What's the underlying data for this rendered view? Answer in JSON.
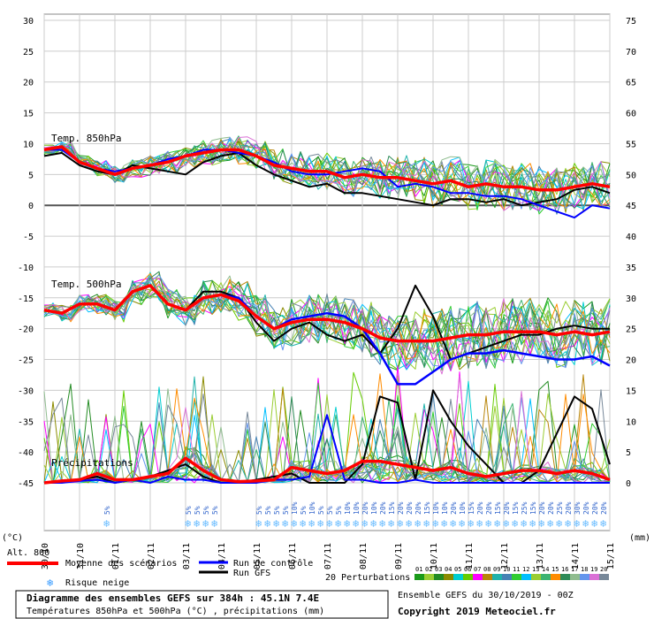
{
  "chart_data": {
    "type": "line",
    "left_axis": {
      "label": "(°C)",
      "ticks": [
        30,
        25,
        20,
        15,
        10,
        5,
        0,
        -5,
        -10,
        -15,
        -20,
        -25,
        -30,
        -35,
        -40,
        -45
      ],
      "ylim": [
        -45,
        30
      ]
    },
    "right_axis": {
      "label": "(mm)",
      "ticks": [
        75,
        70,
        65,
        60,
        55,
        50,
        45,
        40,
        35,
        30,
        25,
        20,
        15,
        10,
        5,
        0
      ],
      "ylim": [
        0,
        75
      ]
    },
    "x_ticks": [
      "30/10",
      "31/10",
      "01/11",
      "02/11",
      "03/11",
      "04/11",
      "05/11",
      "06/11",
      "07/11",
      "08/11",
      "09/11",
      "10/11",
      "11/11",
      "12/11",
      "13/11",
      "14/11",
      "15/11"
    ],
    "alt_label": "Alt. 800",
    "panel_labels": {
      "t850": "Temp. 850hPa",
      "t500": "Temp. 500hPa",
      "precip": "Précipitations"
    },
    "legend": {
      "mean": "Moyenne des scénarios",
      "control": "Run de contrôle",
      "gfs": "Run GFS",
      "snow": "Risque neige",
      "perturbations": "20 Perturbations",
      "pert_numbers": [
        "01",
        "02",
        "03",
        "04",
        "05",
        "06",
        "07",
        "08",
        "09",
        "10",
        "11",
        "12",
        "13",
        "14",
        "15",
        "16",
        "17",
        "18",
        "19",
        "20"
      ]
    },
    "pert_colors": [
      "#1a9a1a",
      "#9acd32",
      "#228b22",
      "#8b8b00",
      "#00ced1",
      "#66cc00",
      "#ff00ff",
      "#b8860b",
      "#20b2aa",
      "#4682b4",
      "#32cd32",
      "#00bfff",
      "#9acd32",
      "#3cb371",
      "#ff8c00",
      "#2e8b57",
      "#8fbc8f",
      "#6495ed",
      "#da70d6",
      "#778899"
    ],
    "snow_percent": [
      {
        "day": 1.8,
        "label": "5%"
      },
      {
        "day": 4.1,
        "label": "5%"
      },
      {
        "day": 4.35,
        "label": "5%"
      },
      {
        "day": 4.6,
        "label": "5%"
      },
      {
        "day": 4.85,
        "label": "5%"
      },
      {
        "day": 6.1,
        "label": "5%"
      },
      {
        "day": 6.35,
        "label": "5%"
      },
      {
        "day": 6.6,
        "label": "5%"
      },
      {
        "day": 6.85,
        "label": "5%"
      },
      {
        "day": 7.1,
        "label": "10%"
      },
      {
        "day": 7.35,
        "label": "5%"
      },
      {
        "day": 7.6,
        "label": "10%"
      },
      {
        "day": 7.85,
        "label": "5%"
      },
      {
        "day": 8.1,
        "label": "5%"
      },
      {
        "day": 8.35,
        "label": "5%"
      },
      {
        "day": 8.6,
        "label": "10%"
      },
      {
        "day": 8.85,
        "label": "10%"
      },
      {
        "day": 9.1,
        "label": "20%"
      },
      {
        "day": 9.35,
        "label": "10%"
      },
      {
        "day": 9.6,
        "label": "20%"
      },
      {
        "day": 9.85,
        "label": "15%"
      },
      {
        "day": 10.1,
        "label": "20%"
      },
      {
        "day": 10.35,
        "label": "20%"
      },
      {
        "day": 10.6,
        "label": "20%"
      },
      {
        "day": 10.85,
        "label": "15%"
      },
      {
        "day": 11.1,
        "label": "10%"
      },
      {
        "day": 11.35,
        "label": "10%"
      },
      {
        "day": 11.6,
        "label": "20%"
      },
      {
        "day": 11.85,
        "label": "10%"
      },
      {
        "day": 12.1,
        "label": "15%"
      },
      {
        "day": 12.35,
        "label": "20%"
      },
      {
        "day": 12.6,
        "label": "20%"
      },
      {
        "day": 12.85,
        "label": "15%"
      },
      {
        "day": 13.1,
        "label": "20%"
      },
      {
        "day": 13.35,
        "label": "15%"
      },
      {
        "day": 13.6,
        "label": "25%"
      },
      {
        "day": 13.85,
        "label": "15%"
      },
      {
        "day": 14.1,
        "label": "20%"
      },
      {
        "day": 14.35,
        "label": "20%"
      },
      {
        "day": 14.6,
        "label": "25%"
      },
      {
        "day": 14.85,
        "label": "20%"
      },
      {
        "day": 15.1,
        "label": "30%"
      },
      {
        "day": 15.35,
        "label": "20%"
      },
      {
        "day": 15.6,
        "label": "20%"
      },
      {
        "day": 15.85,
        "label": "20%"
      }
    ],
    "series": {
      "t850_mean": {
        "x": [
          0,
          0.5,
          1,
          1.5,
          2,
          2.5,
          3,
          3.5,
          4,
          4.5,
          5,
          5.5,
          6,
          6.5,
          7,
          7.5,
          8,
          8.5,
          9,
          9.5,
          10,
          10.5,
          11,
          11.5,
          12,
          12.5,
          13,
          13.5,
          14,
          14.5,
          15,
          15.5,
          16
        ],
        "y": [
          9,
          9.5,
          7,
          6,
          5,
          6,
          6.5,
          7,
          8,
          8.5,
          9,
          9,
          8,
          6.5,
          6,
          5.5,
          5.5,
          4.5,
          5,
          4.5,
          4.5,
          4,
          3.5,
          4,
          3,
          3.5,
          3,
          3,
          2.5,
          2.5,
          3,
          3.5,
          3
        ]
      },
      "t850_control": {
        "x": [
          0,
          0.5,
          1,
          1.5,
          2,
          2.5,
          3,
          3.5,
          4,
          4.5,
          5,
          5.5,
          6,
          6.5,
          7,
          7.5,
          8,
          8.5,
          9,
          9.5,
          10,
          10.5,
          11,
          11.5,
          12,
          12.5,
          13,
          13.5,
          14,
          14.5,
          15,
          15.5,
          16
        ],
        "y": [
          9,
          9,
          7,
          6,
          5.5,
          6,
          6.5,
          7.5,
          8,
          9,
          9,
          8.5,
          8,
          7,
          5.5,
          5,
          5,
          5.5,
          6,
          5.5,
          3,
          3.5,
          3,
          2,
          2,
          1.5,
          1.5,
          1,
          0,
          -1,
          -2,
          0,
          -0.5
        ]
      },
      "t850_gfs": {
        "x": [
          0,
          0.5,
          1,
          1.5,
          2,
          2.5,
          3,
          3.5,
          4,
          4.5,
          5,
          5.5,
          6,
          6.5,
          7,
          7.5,
          8,
          8.5,
          9,
          9.5,
          10,
          10.5,
          11,
          11.5,
          12,
          12.5,
          13,
          13.5,
          14,
          14.5,
          15,
          15.5,
          16
        ],
        "y": [
          8,
          8.5,
          6.5,
          5.5,
          5,
          6.5,
          6,
          5.5,
          5,
          7,
          8,
          8.5,
          6.5,
          5,
          4,
          3,
          3.5,
          2,
          2,
          1.5,
          1,
          0.5,
          0,
          1,
          1,
          0.5,
          1,
          0,
          0.5,
          1,
          2.5,
          3,
          2
        ]
      },
      "t500_mean": {
        "x": [
          0,
          0.5,
          1,
          1.5,
          2,
          2.5,
          3,
          3.5,
          4,
          4.5,
          5,
          5.5,
          6,
          6.5,
          7,
          7.5,
          8,
          8.5,
          9,
          9.5,
          10,
          10.5,
          11,
          11.5,
          12,
          12.5,
          13,
          13.5,
          14,
          14.5,
          15,
          15.5,
          16
        ],
        "y": [
          -17,
          -17.5,
          -16,
          -16,
          -17,
          -14,
          -13,
          -16,
          -17,
          -15,
          -14.5,
          -15.5,
          -18,
          -20,
          -19,
          -18.5,
          -18.5,
          -19,
          -20,
          -21.5,
          -22,
          -22,
          -22,
          -21.5,
          -21,
          -21,
          -20.5,
          -20.5,
          -20.5,
          -21,
          -20.5,
          -21,
          -20.5
        ]
      },
      "t500_control": {
        "x": [
          0,
          0.5,
          1,
          1.5,
          2,
          2.5,
          3,
          3.5,
          4,
          4.5,
          5,
          5.5,
          6,
          6.5,
          7,
          7.5,
          8,
          8.5,
          9,
          9.5,
          10,
          10.5,
          11,
          11.5,
          12,
          12.5,
          13,
          13.5,
          14,
          14.5,
          15,
          15.5,
          16
        ],
        "y": [
          -17,
          -17.5,
          -16,
          -16,
          -17,
          -14,
          -13,
          -16,
          -17,
          -15,
          -14.5,
          -15,
          -18,
          -20,
          -18.5,
          -18,
          -17.5,
          -18,
          -20,
          -24,
          -29,
          -29,
          -27,
          -25,
          -24,
          -24,
          -23.5,
          -24,
          -24.5,
          -25,
          -25,
          -24.5,
          -26
        ]
      },
      "t500_gfs": {
        "x": [
          0,
          0.5,
          1,
          1.5,
          2,
          2.5,
          3,
          3.5,
          4,
          4.5,
          5,
          5.5,
          6,
          6.5,
          7,
          7.5,
          8,
          8.5,
          9,
          9.5,
          10,
          10.5,
          11,
          11.5,
          12,
          12.5,
          13,
          13.5,
          14,
          14.5,
          15,
          15.5,
          16
        ],
        "y": [
          -17,
          -17.5,
          -16,
          -16,
          -17,
          -14,
          -13,
          -16,
          -17,
          -14,
          -14,
          -15,
          -19,
          -22,
          -20,
          -19,
          -21,
          -22,
          -21,
          -24,
          -20,
          -13,
          -18,
          -25,
          -24,
          -23,
          -22,
          -21,
          -21,
          -20,
          -19.5,
          -20,
          -20
        ]
      },
      "precip_mean": {
        "x": [
          0,
          0.5,
          1,
          1.5,
          2,
          2.5,
          3,
          3.5,
          4,
          4.5,
          5,
          5.5,
          6,
          6.5,
          7,
          7.5,
          8,
          8.5,
          9,
          9.5,
          10,
          10.5,
          11,
          11.5,
          12,
          12.5,
          13,
          13.5,
          14,
          14.5,
          15,
          15.5,
          16
        ],
        "y": [
          0,
          0.3,
          0.5,
          1.5,
          0.5,
          0.5,
          1,
          1.5,
          4,
          2,
          0.5,
          0.2,
          0.3,
          0.5,
          2.5,
          2,
          1.5,
          2,
          3.5,
          3.5,
          3,
          2.5,
          2,
          2.5,
          1.5,
          1,
          1.5,
          2,
          2,
          1.5,
          2,
          1.5,
          0.5
        ]
      },
      "precip_gfs": {
        "x": [
          0,
          0.5,
          1,
          1.5,
          2,
          2.5,
          3,
          3.5,
          4,
          4.5,
          5,
          5.5,
          6,
          6.5,
          7,
          7.5,
          8,
          8.5,
          9,
          9.5,
          10,
          10.5,
          11,
          11.5,
          12,
          12.5,
          13,
          13.5,
          14,
          14.5,
          15,
          15.5,
          16
        ],
        "y": [
          0,
          0.2,
          0.5,
          1,
          0,
          0.5,
          1,
          2,
          3,
          1,
          0,
          0,
          0.5,
          1,
          1.5,
          0,
          0,
          0,
          3,
          14,
          13,
          0.5,
          15,
          10,
          6,
          3,
          0,
          0,
          2,
          8,
          14,
          12,
          3
        ]
      },
      "precip_control": {
        "x": [
          0,
          0.5,
          1,
          1.5,
          2,
          2.5,
          3,
          3.5,
          4,
          4.5,
          5,
          5.5,
          6,
          6.5,
          7,
          7.5,
          8,
          8.5,
          9,
          9.5,
          10,
          10.5,
          11,
          11.5,
          12,
          12.5,
          13,
          13.5,
          14,
          14.5,
          15,
          15.5,
          16
        ],
        "y": [
          0,
          0,
          0.3,
          0.5,
          0,
          0.5,
          0,
          1,
          0.5,
          0.5,
          0,
          0,
          0,
          0.5,
          0.5,
          1,
          11,
          0.5,
          0.5,
          0,
          0,
          0.5,
          0,
          0,
          0,
          0,
          0,
          0,
          0,
          0,
          0,
          0,
          0
        ]
      }
    }
  },
  "footer": {
    "title": "Diagramme des ensembles GEFS sur 384h : 45.1N 7.4E",
    "subtitle": "Températures 850hPa et 500hPa (°C) , précipitations (mm)",
    "run_info": "Ensemble GEFS du 30/10/2019 - 00Z",
    "copyright": "Copyright 2019 Meteociel.fr"
  }
}
